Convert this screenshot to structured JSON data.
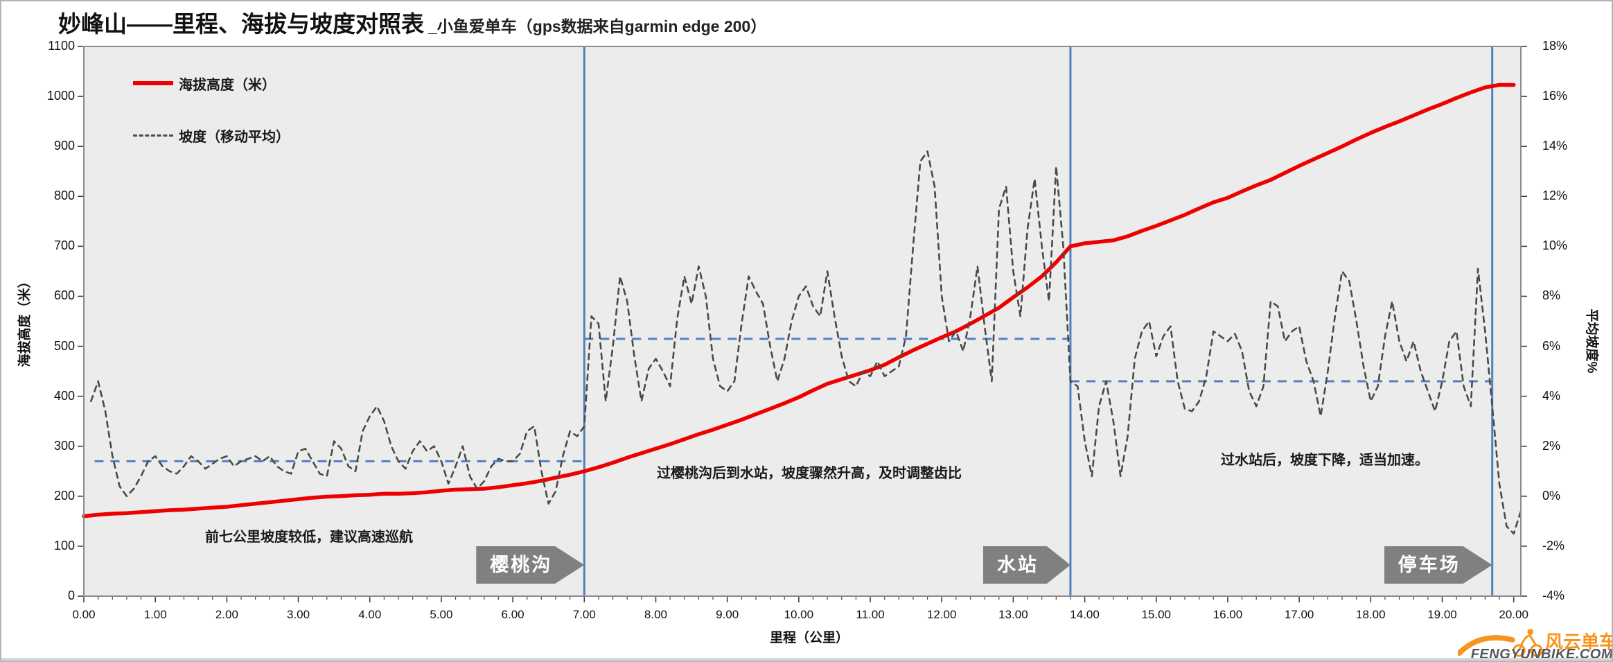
{
  "title": {
    "main": "妙峰山——里程、海拔与坡度对照表",
    "sub": "_小鱼爱单车（gps数据来自garmin edge 200）"
  },
  "legend": {
    "elevation": "海拔高度（米）",
    "slope": "坡度（移动平均）"
  },
  "axes": {
    "left_title": "海拔高度（米）",
    "right_title": "平均坡度%",
    "x_title": "里程（公里）",
    "left_ticks": [
      "0",
      "100",
      "200",
      "300",
      "400",
      "500",
      "600",
      "700",
      "800",
      "900",
      "1000",
      "1100"
    ],
    "right_ticks": [
      "-4%",
      "-2%",
      "0%",
      "2%",
      "4%",
      "6%",
      "8%",
      "10%",
      "12%",
      "14%",
      "16%",
      "18%"
    ],
    "x_ticks": [
      "0.00",
      "1.00",
      "2.00",
      "3.00",
      "4.00",
      "5.00",
      "6.00",
      "7.00",
      "8.00",
      "9.00",
      "10.00",
      "11.00",
      "12.00",
      "13.00",
      "14.00",
      "15.00",
      "16.00",
      "17.00",
      "18.00",
      "19.00",
      "20.00"
    ]
  },
  "annotations": [
    "前七公里坡度较低，建议高速巡航",
    "过樱桃沟后到水站，坡度骤然升高，及时调整齿比",
    "过水站后，坡度下降，适当加速。"
  ],
  "markers": [
    {
      "label": "樱桃沟",
      "km": 7.0
    },
    {
      "label": "水站",
      "km": 13.8
    },
    {
      "label": "停车场",
      "km": 19.7
    }
  ],
  "footer": {
    "brand": "风云单车",
    "site": "FENGYUNBIKE.COM"
  },
  "colors": {
    "elevation_line": "#ee0000",
    "slope_line": "#4a4a4a",
    "guide_blue": "#4f81bd",
    "marker_gray": "#808080",
    "brand_orange": "#f7941d",
    "plot_bg": "#ececec",
    "plot_border": "#8c8c8c",
    "tick": "#404040"
  },
  "chart_data": {
    "type": "line",
    "title": "妙峰山——里程、海拔与坡度对照表_小鱼爱单车（gps数据来自garmin edge 200）",
    "xlabel": "里程（公里）",
    "ylabel_left": "海拔高度（米）",
    "ylabel_right": "平均坡度%",
    "xlim": [
      0,
      20.1
    ],
    "ylim_left": [
      0,
      1100
    ],
    "ylim_right": [
      -4,
      18
    ],
    "grid": false,
    "legend_position": "top-left-inside",
    "series": [
      {
        "name": "海拔高度（米）",
        "axis": "left",
        "style": "solid",
        "color": "#ee0000",
        "x_start": 0,
        "x_step": 0.2,
        "values": [
          160,
          163,
          165,
          166,
          168,
          170,
          172,
          173,
          175,
          177,
          179,
          182,
          185,
          188,
          191,
          194,
          197,
          199,
          200,
          202,
          203,
          205,
          205,
          206,
          208,
          211,
          213,
          214,
          215,
          218,
          222,
          226,
          231,
          237,
          243,
          250,
          258,
          267,
          277,
          286,
          295,
          304,
          314,
          324,
          333,
          343,
          353,
          364,
          375,
          386,
          398,
          412,
          425,
          434,
          443,
          452,
          463,
          478,
          492,
          505,
          518,
          530,
          545,
          561,
          577,
          598,
          618,
          640,
          668,
          700,
          706,
          709,
          712,
          720,
          731,
          741,
          752,
          763,
          776,
          788,
          797,
          810,
          822,
          833,
          847,
          861,
          874,
          887,
          900,
          914,
          927,
          939,
          950,
          962,
          974,
          985,
          997,
          1008,
          1018,
          1023,
          1023
        ]
      },
      {
        "name": "坡度（移动平均）",
        "axis": "right",
        "style": "dashed",
        "color": "#4a4a4a",
        "x_start": 0.1,
        "x_step": 0.1,
        "values": [
          3.8,
          4.6,
          3.4,
          1.6,
          0.4,
          0.0,
          0.3,
          0.8,
          1.4,
          1.6,
          1.2,
          1.0,
          0.9,
          1.2,
          1.6,
          1.4,
          1.1,
          1.3,
          1.5,
          1.6,
          1.2,
          1.4,
          1.5,
          1.6,
          1.4,
          1.6,
          1.2,
          1.0,
          0.9,
          1.8,
          1.9,
          1.4,
          0.9,
          0.8,
          2.2,
          1.9,
          1.2,
          1.0,
          2.6,
          3.2,
          3.6,
          3.0,
          2.0,
          1.4,
          1.1,
          1.8,
          2.2,
          1.8,
          2.0,
          1.4,
          0.5,
          1.2,
          2.0,
          0.8,
          0.3,
          0.6,
          1.2,
          1.5,
          1.4,
          1.4,
          1.7,
          2.6,
          2.8,
          1.0,
          -0.3,
          0.2,
          1.6,
          2.6,
          2.4,
          2.8,
          7.2,
          6.9,
          3.8,
          6.0,
          8.8,
          7.8,
          5.6,
          3.8,
          5.1,
          5.5,
          5.0,
          4.4,
          7.1,
          8.8,
          7.7,
          9.2,
          8.0,
          5.5,
          4.4,
          4.2,
          4.6,
          6.9,
          8.8,
          8.2,
          7.7,
          6.0,
          4.6,
          5.5,
          7.0,
          8.0,
          8.4,
          7.6,
          7.2,
          9.0,
          7.2,
          5.6,
          4.6,
          4.4,
          5.0,
          4.8,
          5.4,
          4.8,
          5.0,
          5.2,
          6.4,
          10.0,
          13.4,
          13.8,
          12.4,
          8.0,
          6.2,
          6.6,
          5.8,
          7.2,
          9.2,
          6.8,
          4.6,
          11.5,
          12.4,
          9.0,
          7.2,
          10.7,
          12.7,
          10.0,
          7.8,
          13.2,
          10.0,
          4.6,
          4.4,
          2.2,
          0.8,
          3.6,
          4.6,
          3.0,
          0.8,
          2.4,
          5.5,
          6.6,
          7.0,
          5.6,
          6.4,
          6.8,
          4.6,
          3.5,
          3.4,
          3.8,
          4.8,
          6.6,
          6.4,
          6.2,
          6.5,
          5.8,
          4.2,
          3.6,
          4.4,
          7.8,
          7.6,
          6.2,
          6.6,
          6.8,
          5.4,
          4.6,
          3.2,
          5.0,
          7.2,
          9.0,
          8.6,
          7.0,
          5.2,
          3.8,
          4.4,
          6.4,
          7.8,
          6.2,
          5.4,
          6.2,
          5.0,
          4.2,
          3.4,
          4.6,
          6.2,
          6.6,
          4.4,
          3.6,
          9.1,
          6.6,
          3.6,
          0.5,
          -1.2,
          -1.5,
          -0.6
        ]
      }
    ],
    "segment_avg_lines": [
      {
        "from_km": 0.15,
        "to_km": 7.0,
        "slope_pct": 1.4
      },
      {
        "from_km": 7.0,
        "to_km": 13.8,
        "slope_pct": 6.3
      },
      {
        "from_km": 13.8,
        "to_km": 19.7,
        "slope_pct": 4.6
      }
    ],
    "event_lines_km": [
      7.0,
      13.8,
      19.7
    ]
  }
}
